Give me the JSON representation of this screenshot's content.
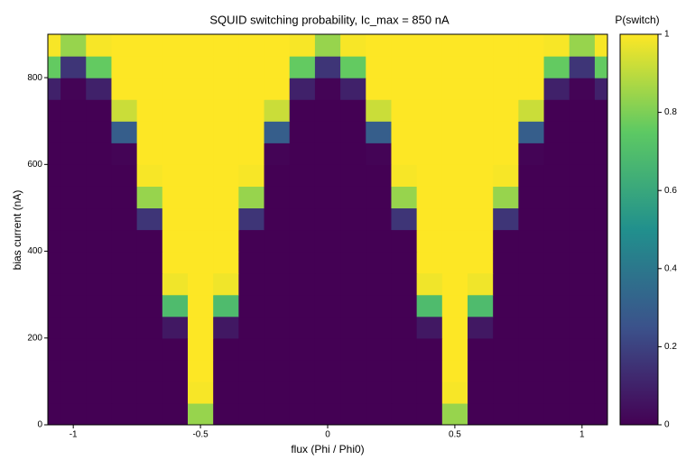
{
  "chart_data": {
    "type": "heatmap",
    "title": "SQUID switching probability, Ic_max = 850 nA",
    "x_label": "flux (Phi / Phi0)",
    "y_label": "bias current (nA)",
    "colorbar_title": "P(switch)",
    "x": [
      -1.1,
      -1.0,
      -0.9,
      -0.8,
      -0.7,
      -0.6,
      -0.5,
      -0.4,
      -0.3,
      -0.2,
      -0.1,
      0,
      0.1,
      0.2,
      0.3,
      0.4,
      0.5,
      0.6,
      0.7,
      0.8,
      0.9,
      1.0,
      1.1
    ],
    "y": [
      25,
      75,
      125,
      175,
      225,
      275,
      325,
      375,
      425,
      475,
      525,
      575,
      625,
      675,
      725,
      775,
      825,
      875
    ],
    "z": [
      [
        0,
        0,
        0,
        0,
        0,
        0,
        0.84,
        0,
        0,
        0,
        0,
        0,
        0,
        0,
        0,
        0,
        0.84,
        0,
        0,
        0,
        0,
        0,
        0
      ],
      [
        0,
        0,
        0,
        0,
        0,
        0,
        0.99,
        0,
        0,
        0,
        0,
        0,
        0,
        0,
        0,
        0,
        0.99,
        0,
        0,
        0,
        0,
        0,
        0
      ],
      [
        0,
        0,
        0,
        0,
        0,
        0,
        1,
        0,
        0,
        0,
        0,
        0,
        0,
        0,
        0,
        0,
        1,
        0,
        0,
        0,
        0,
        0,
        0
      ],
      [
        0,
        0,
        0,
        0,
        0,
        0,
        1,
        0,
        0,
        0,
        0,
        0,
        0,
        0,
        0,
        0,
        1,
        0,
        0,
        0,
        0,
        0,
        0
      ],
      [
        0,
        0,
        0,
        0,
        0,
        0.07,
        1,
        0.07,
        0,
        0,
        0,
        0,
        0,
        0,
        0,
        0.07,
        1,
        0.07,
        0,
        0,
        0,
        0,
        0
      ],
      [
        0,
        0,
        0,
        0,
        0,
        0.69,
        1,
        0.69,
        0,
        0,
        0,
        0,
        0,
        0,
        0,
        0.69,
        1,
        0.69,
        0,
        0,
        0,
        0,
        0
      ],
      [
        0,
        0,
        0,
        0,
        0,
        0.98,
        1,
        0.98,
        0,
        0,
        0,
        0,
        0,
        0,
        0,
        0.98,
        1,
        0.98,
        0,
        0,
        0,
        0,
        0
      ],
      [
        0,
        0,
        0,
        0,
        0,
        1,
        1,
        1,
        0,
        0,
        0,
        0,
        0,
        0,
        0,
        1,
        1,
        1,
        0,
        0,
        0,
        0,
        0
      ],
      [
        0,
        0,
        0,
        0,
        0,
        1,
        1,
        1,
        0,
        0,
        0,
        0,
        0,
        0,
        0,
        1,
        1,
        1,
        0,
        0,
        0,
        0,
        0
      ],
      [
        0,
        0,
        0,
        0,
        0.16,
        1,
        1,
        1,
        0.16,
        0,
        0,
        0,
        0,
        0,
        0.16,
        1,
        1,
        1,
        0.16,
        0,
        0,
        0,
        0
      ],
      [
        0,
        0,
        0,
        0,
        0.84,
        1,
        1,
        1,
        0.84,
        0,
        0,
        0,
        0,
        0,
        0.84,
        1,
        1,
        1,
        0.84,
        0,
        0,
        0,
        0
      ],
      [
        0,
        0,
        0,
        0,
        0.99,
        1,
        1,
        1,
        0.99,
        0,
        0,
        0,
        0,
        0,
        0.99,
        1,
        1,
        1,
        0.99,
        0,
        0,
        0,
        0
      ],
      [
        0,
        0,
        0,
        0.01,
        1,
        1,
        1,
        1,
        1,
        0.01,
        0,
        0,
        0,
        0.01,
        1,
        1,
        1,
        1,
        1,
        0.01,
        0,
        0,
        0
      ],
      [
        0,
        0,
        0,
        0.3,
        1,
        1,
        1,
        1,
        1,
        0.3,
        0,
        0,
        0,
        0.3,
        1,
        1,
        1,
        1,
        1,
        0.3,
        0,
        0,
        0
      ],
      [
        0,
        0,
        0,
        0.92,
        1,
        1,
        1,
        1,
        1,
        0.92,
        0,
        0,
        0,
        0.92,
        1,
        1,
        1,
        1,
        1,
        0.92,
        0,
        0,
        0
      ],
      [
        0.1,
        0.01,
        0.1,
        1,
        1,
        1,
        1,
        1,
        1,
        1,
        0.1,
        0.01,
        0.1,
        1,
        1,
        1,
        1,
        1,
        1,
        1,
        0.1,
        0.01,
        0.1
      ],
      [
        0.76,
        0.16,
        0.76,
        1,
        1,
        1,
        1,
        1,
        1,
        1,
        0.76,
        0.16,
        0.76,
        1,
        1,
        1,
        1,
        1,
        1,
        1,
        0.76,
        0.16,
        0.76
      ],
      [
        0.99,
        0.84,
        0.99,
        1,
        1,
        1,
        1,
        1,
        1,
        1,
        0.99,
        0.84,
        0.99,
        1,
        1,
        1,
        1,
        1,
        1,
        1,
        0.99,
        0.84,
        0.99
      ]
    ],
    "xlim": [
      -1.1,
      1.1
    ],
    "ylim": [
      0,
      900
    ],
    "xticks": [
      -1,
      -0.5,
      0,
      0.5,
      1
    ],
    "yticks": [
      0,
      200,
      400,
      600,
      800
    ],
    "zlim": [
      0,
      1
    ],
    "zticks": [
      0,
      0.2,
      0.4,
      0.6,
      0.8,
      1
    ],
    "colorscale": [
      [
        0,
        "#440154"
      ],
      [
        0.25,
        "#3b528b"
      ],
      [
        0.5,
        "#21908d"
      ],
      [
        0.75,
        "#5dc963"
      ],
      [
        1,
        "#fde725"
      ]
    ]
  }
}
